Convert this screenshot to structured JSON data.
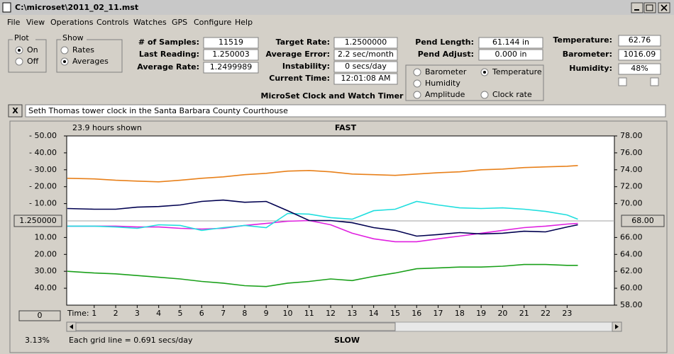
{
  "window": {
    "title": "C:\\microset\\2011_02_11.mst",
    "menu": [
      "File",
      "View",
      "Operations",
      "Controls",
      "Watches",
      "GPS",
      "Configure",
      "Help"
    ]
  },
  "controls": {
    "plot": {
      "label": "Plot",
      "options": [
        "On",
        "Off"
      ],
      "selected": 0
    },
    "show": {
      "label": "Show",
      "options": [
        "Rates",
        "Averages"
      ],
      "selected": 1
    },
    "columns": [
      [
        {
          "label": "# of Samples:",
          "value": "11519"
        },
        {
          "label": "Last Reading:",
          "value": "1.250003"
        },
        {
          "label": "Average Rate:",
          "value": "1.2499989"
        }
      ],
      [
        {
          "label": "Target Rate:",
          "value": "1.2500000"
        },
        {
          "label": "Average Error:",
          "value": "2.2 sec/month"
        },
        {
          "label": "Instability:",
          "value": "0 secs/day"
        },
        {
          "label": "Current Time:",
          "value": "12:01:08 AM"
        }
      ],
      [
        {
          "label": "Pend Length:",
          "value": "61.144 in"
        },
        {
          "label": "Pend Adjust:",
          "value": "0.000 in"
        }
      ],
      [
        {
          "label": "Temperature:",
          "value": "62.76"
        },
        {
          "label": "Barometer:",
          "value": "1016.09"
        },
        {
          "label": "Humidity:",
          "value": "48%"
        }
      ]
    ],
    "caption": "MicroSet Clock and Watch Timer",
    "close_button": "X",
    "description": "Seth Thomas tower clock in the Santa Barbara County Courthouse"
  },
  "chart_data": {
    "type": "line",
    "top_label": "FAST",
    "bottom_label": "SLOW",
    "span_label": "23.9 hours shown",
    "x_label": "Time:",
    "center_left": "1.250000",
    "center_right": "68.00",
    "bottom_left": "0",
    "zoom": "3.13%",
    "grid_note": "Each grid line = 0.691 secs/day",
    "selected_series": 1,
    "x": [
      -0.25,
      1,
      2,
      3,
      4,
      5,
      6,
      7,
      8,
      9,
      10,
      11,
      12,
      13,
      14,
      15,
      16,
      17,
      18,
      19,
      20,
      21,
      22,
      23,
      23.5
    ],
    "xlim": [
      -0.28,
      25.2
    ],
    "xticks": [
      1,
      2,
      3,
      4,
      5,
      6,
      7,
      8,
      9,
      10,
      11,
      12,
      13,
      14,
      15,
      16,
      17,
      18,
      19,
      20,
      21,
      22,
      23
    ],
    "ylim": [
      -50,
      50
    ],
    "yticks": [
      {
        "value": 50,
        "label": "- 50.00"
      },
      {
        "value": 40,
        "label": "- 40.00"
      },
      {
        "value": 30,
        "label": "- 30.00"
      },
      {
        "value": 20,
        "label": "- 20.00"
      },
      {
        "value": 10,
        "label": "- 10.00"
      },
      {
        "value": -10,
        "label": "10.00"
      },
      {
        "value": -20,
        "label": "20.00"
      },
      {
        "value": -30,
        "label": "30.00"
      },
      {
        "value": -40,
        "label": "40.00"
      }
    ],
    "y2lim": [
      58,
      78
    ],
    "y2ticks": [
      {
        "value": 78,
        "label": "78.00"
      },
      {
        "value": 76,
        "label": "76.00"
      },
      {
        "value": 74,
        "label": "74.00"
      },
      {
        "value": 72,
        "label": "72.00"
      },
      {
        "value": 70,
        "label": "70.00"
      },
      {
        "value": 66,
        "label": "66.00"
      },
      {
        "value": 64,
        "label": "64.00"
      },
      {
        "value": 62,
        "label": "62.00"
      },
      {
        "value": 60,
        "label": "60.00"
      },
      {
        "value": 58,
        "label": "58.00"
      }
    ],
    "series": [
      {
        "name": "Barometer",
        "color": "#e8801a",
        "values": [
          25.0,
          24.6,
          23.8,
          23.3,
          22.9,
          23.8,
          25.0,
          25.8,
          27.1,
          27.9,
          29.2,
          29.6,
          28.8,
          27.5,
          27.1,
          26.7,
          27.5,
          28.3,
          28.8,
          30.0,
          30.4,
          31.3,
          31.7,
          32.1,
          32.5
        ]
      },
      {
        "name": "Temperature",
        "color": "#1aa01a",
        "axis": "y2",
        "values": [
          62.0,
          61.8,
          61.7,
          61.5,
          61.3,
          61.1,
          60.8,
          60.6,
          60.3,
          60.2,
          60.6,
          60.8,
          61.1,
          60.9,
          61.4,
          61.8,
          62.3,
          62.4,
          62.5,
          62.5,
          62.6,
          62.8,
          62.8,
          62.7,
          62.7
        ]
      },
      {
        "name": "Humidity",
        "color": "#e020e0",
        "values": [
          -3.3,
          -3.3,
          -3.3,
          -3.8,
          -3.8,
          -4.6,
          -5.0,
          -4.6,
          -2.9,
          -1.7,
          -0.4,
          0,
          -2.5,
          -7.5,
          -10.8,
          -12.5,
          -12.5,
          -10.8,
          -9.2,
          -7.5,
          -5.8,
          -4.2,
          -3.3,
          -2.1,
          -1.7
        ]
      },
      {
        "name": "Amplitude",
        "color": "#20dede",
        "values": [
          -3.3,
          -3.3,
          -3.8,
          -4.6,
          -2.5,
          -2.9,
          -5.8,
          -4.2,
          -2.9,
          -4.2,
          4.2,
          3.8,
          1.7,
          0.8,
          5.8,
          6.7,
          11.3,
          9.2,
          7.5,
          7.1,
          7.5,
          6.7,
          5.4,
          3.3,
          0.8
        ]
      },
      {
        "name": "Clock rate",
        "color": "#000050",
        "values": [
          7.1,
          6.7,
          6.7,
          7.9,
          8.3,
          9.2,
          11.3,
          12.1,
          10.8,
          11.3,
          5.8,
          0,
          0,
          -1.3,
          -4.2,
          -5.8,
          -9.2,
          -8.3,
          -7.1,
          -7.9,
          -7.5,
          -6.3,
          -6.7,
          -3.8,
          -2.5
        ]
      }
    ]
  }
}
